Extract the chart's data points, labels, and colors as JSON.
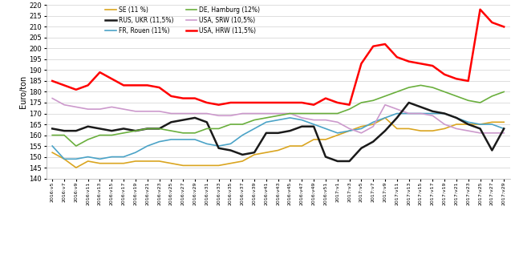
{
  "title": "",
  "ylabel": "Euro/ton",
  "ylim": [
    140,
    220
  ],
  "yticks": [
    140,
    145,
    150,
    155,
    160,
    165,
    170,
    175,
    180,
    185,
    190,
    195,
    200,
    205,
    210,
    215,
    220
  ],
  "x_labels": [
    "2016:v5",
    "2016:v7",
    "2016:v9",
    "2016:v11",
    "2016:v13",
    "2016:v15",
    "2016:v17",
    "2016:v19",
    "2016:v21",
    "2016:v23",
    "2016:v25",
    "2016:v27",
    "2016:v29",
    "2016:v31",
    "2016:v33",
    "2016:v35",
    "2016:v37",
    "2016:v39",
    "2016:v41",
    "2016:v43",
    "2016:v45",
    "2016:v47",
    "2016:v49",
    "2016:v51",
    "2017:v1",
    "2017:v3",
    "2017:v5",
    "2017:v7",
    "2017:v9",
    "2017:v11",
    "2017:v13",
    "2017:v15",
    "2017:v17",
    "2017:v19",
    "2017:v21",
    "2017:v23",
    "2017:v25",
    "2017:v27",
    "2017:v29"
  ],
  "series": {
    "SE (11 %)": {
      "color": "#DAA520",
      "linewidth": 1.2,
      "values": [
        152,
        149,
        145,
        148,
        147,
        147,
        147,
        148,
        148,
        148,
        147,
        146,
        146,
        146,
        146,
        147,
        148,
        151,
        152,
        153,
        155,
        155,
        158,
        158,
        160,
        162,
        164,
        165,
        168,
        163,
        163,
        162,
        162,
        163,
        165,
        165,
        165,
        166,
        166
      ]
    },
    "FR, Rouen (11%)": {
      "color": "#4BA3C7",
      "linewidth": 1.2,
      "values": [
        155,
        149,
        149,
        150,
        149,
        150,
        150,
        152,
        155,
        157,
        158,
        158,
        158,
        156,
        155,
        156,
        160,
        163,
        166,
        167,
        168,
        167,
        165,
        163,
        161,
        162,
        163,
        166,
        168,
        170,
        170,
        170,
        170,
        170,
        168,
        166,
        165,
        165,
        163
      ]
    },
    "USA, SRW (10,5%)": {
      "color": "#CC99CC",
      "linewidth": 1.2,
      "values": [
        177,
        174,
        173,
        172,
        172,
        173,
        172,
        171,
        171,
        171,
        170,
        170,
        170,
        170,
        169,
        169,
        170,
        170,
        170,
        170,
        170,
        168,
        167,
        167,
        166,
        163,
        161,
        164,
        174,
        172,
        170,
        170,
        169,
        165,
        163,
        162,
        161,
        161,
        161
      ]
    },
    "RUS, UKR (11,5%)": {
      "color": "#1A1A1A",
      "linewidth": 1.8,
      "values": [
        163,
        162,
        162,
        164,
        163,
        162,
        163,
        162,
        163,
        163,
        166,
        167,
        168,
        166,
        154,
        153,
        151,
        152,
        161,
        161,
        162,
        164,
        164,
        150,
        148,
        148,
        154,
        157,
        162,
        168,
        175,
        173,
        171,
        170,
        168,
        165,
        163,
        153,
        163
      ]
    },
    "DE, Hamburg (12%)": {
      "color": "#6AAF3D",
      "linewidth": 1.2,
      "values": [
        160,
        160,
        155,
        158,
        160,
        160,
        161,
        162,
        163,
        163,
        162,
        161,
        161,
        163,
        163,
        165,
        165,
        167,
        168,
        169,
        170,
        170,
        170,
        170,
        170,
        172,
        175,
        176,
        178,
        180,
        182,
        183,
        182,
        180,
        178,
        176,
        175,
        178,
        180
      ]
    },
    "USA, HRW (11,5%)": {
      "color": "#FF0000",
      "linewidth": 1.8,
      "values": [
        185,
        183,
        181,
        183,
        189,
        186,
        183,
        183,
        183,
        182,
        178,
        177,
        177,
        175,
        174,
        175,
        175,
        175,
        175,
        175,
        175,
        175,
        174,
        177,
        175,
        174,
        193,
        201,
        202,
        196,
        194,
        193,
        192,
        188,
        186,
        185,
        218,
        212,
        210
      ]
    }
  },
  "legend_col1": [
    "SE (11 %)",
    "FR, Rouen (11%)",
    "USA, SRW (10,5%)"
  ],
  "legend_col2": [
    "RUS, UKR (11,5%)",
    "DE, Hamburg (12%)",
    "USA, HRW (11,5%)"
  ],
  "background_color": "#FFFFFF",
  "grid_color": "#D0D0D0"
}
